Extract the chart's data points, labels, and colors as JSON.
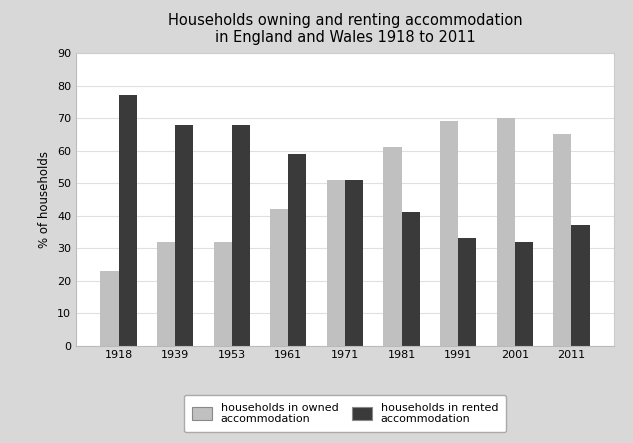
{
  "title": "Households owning and renting accommodation\nin England and Wales 1918 to 2011",
  "ylabel": "% of households",
  "years": [
    "1918",
    "1939",
    "1953",
    "1961",
    "1971",
    "1981",
    "1991",
    "2001",
    "2011"
  ],
  "owned": [
    23,
    32,
    32,
    42,
    51,
    61,
    69,
    70,
    65
  ],
  "rented": [
    77,
    68,
    68,
    59,
    51,
    41,
    33,
    32,
    37
  ],
  "color_owned": "#c0c0c0",
  "color_rented": "#3a3a3a",
  "ylim": [
    0,
    90
  ],
  "yticks": [
    0,
    10,
    20,
    30,
    40,
    50,
    60,
    70,
    80,
    90
  ],
  "legend_owned": "households in owned\naccommodation",
  "legend_rented": "households in rented\naccommodation",
  "fig_facecolor": "#d8d8d8",
  "ax_facecolor": "#ffffff",
  "title_fontsize": 10.5,
  "axis_label_fontsize": 8.5,
  "tick_fontsize": 8,
  "legend_fontsize": 8,
  "bar_width": 0.32,
  "grid_color": "#e0e0e0"
}
